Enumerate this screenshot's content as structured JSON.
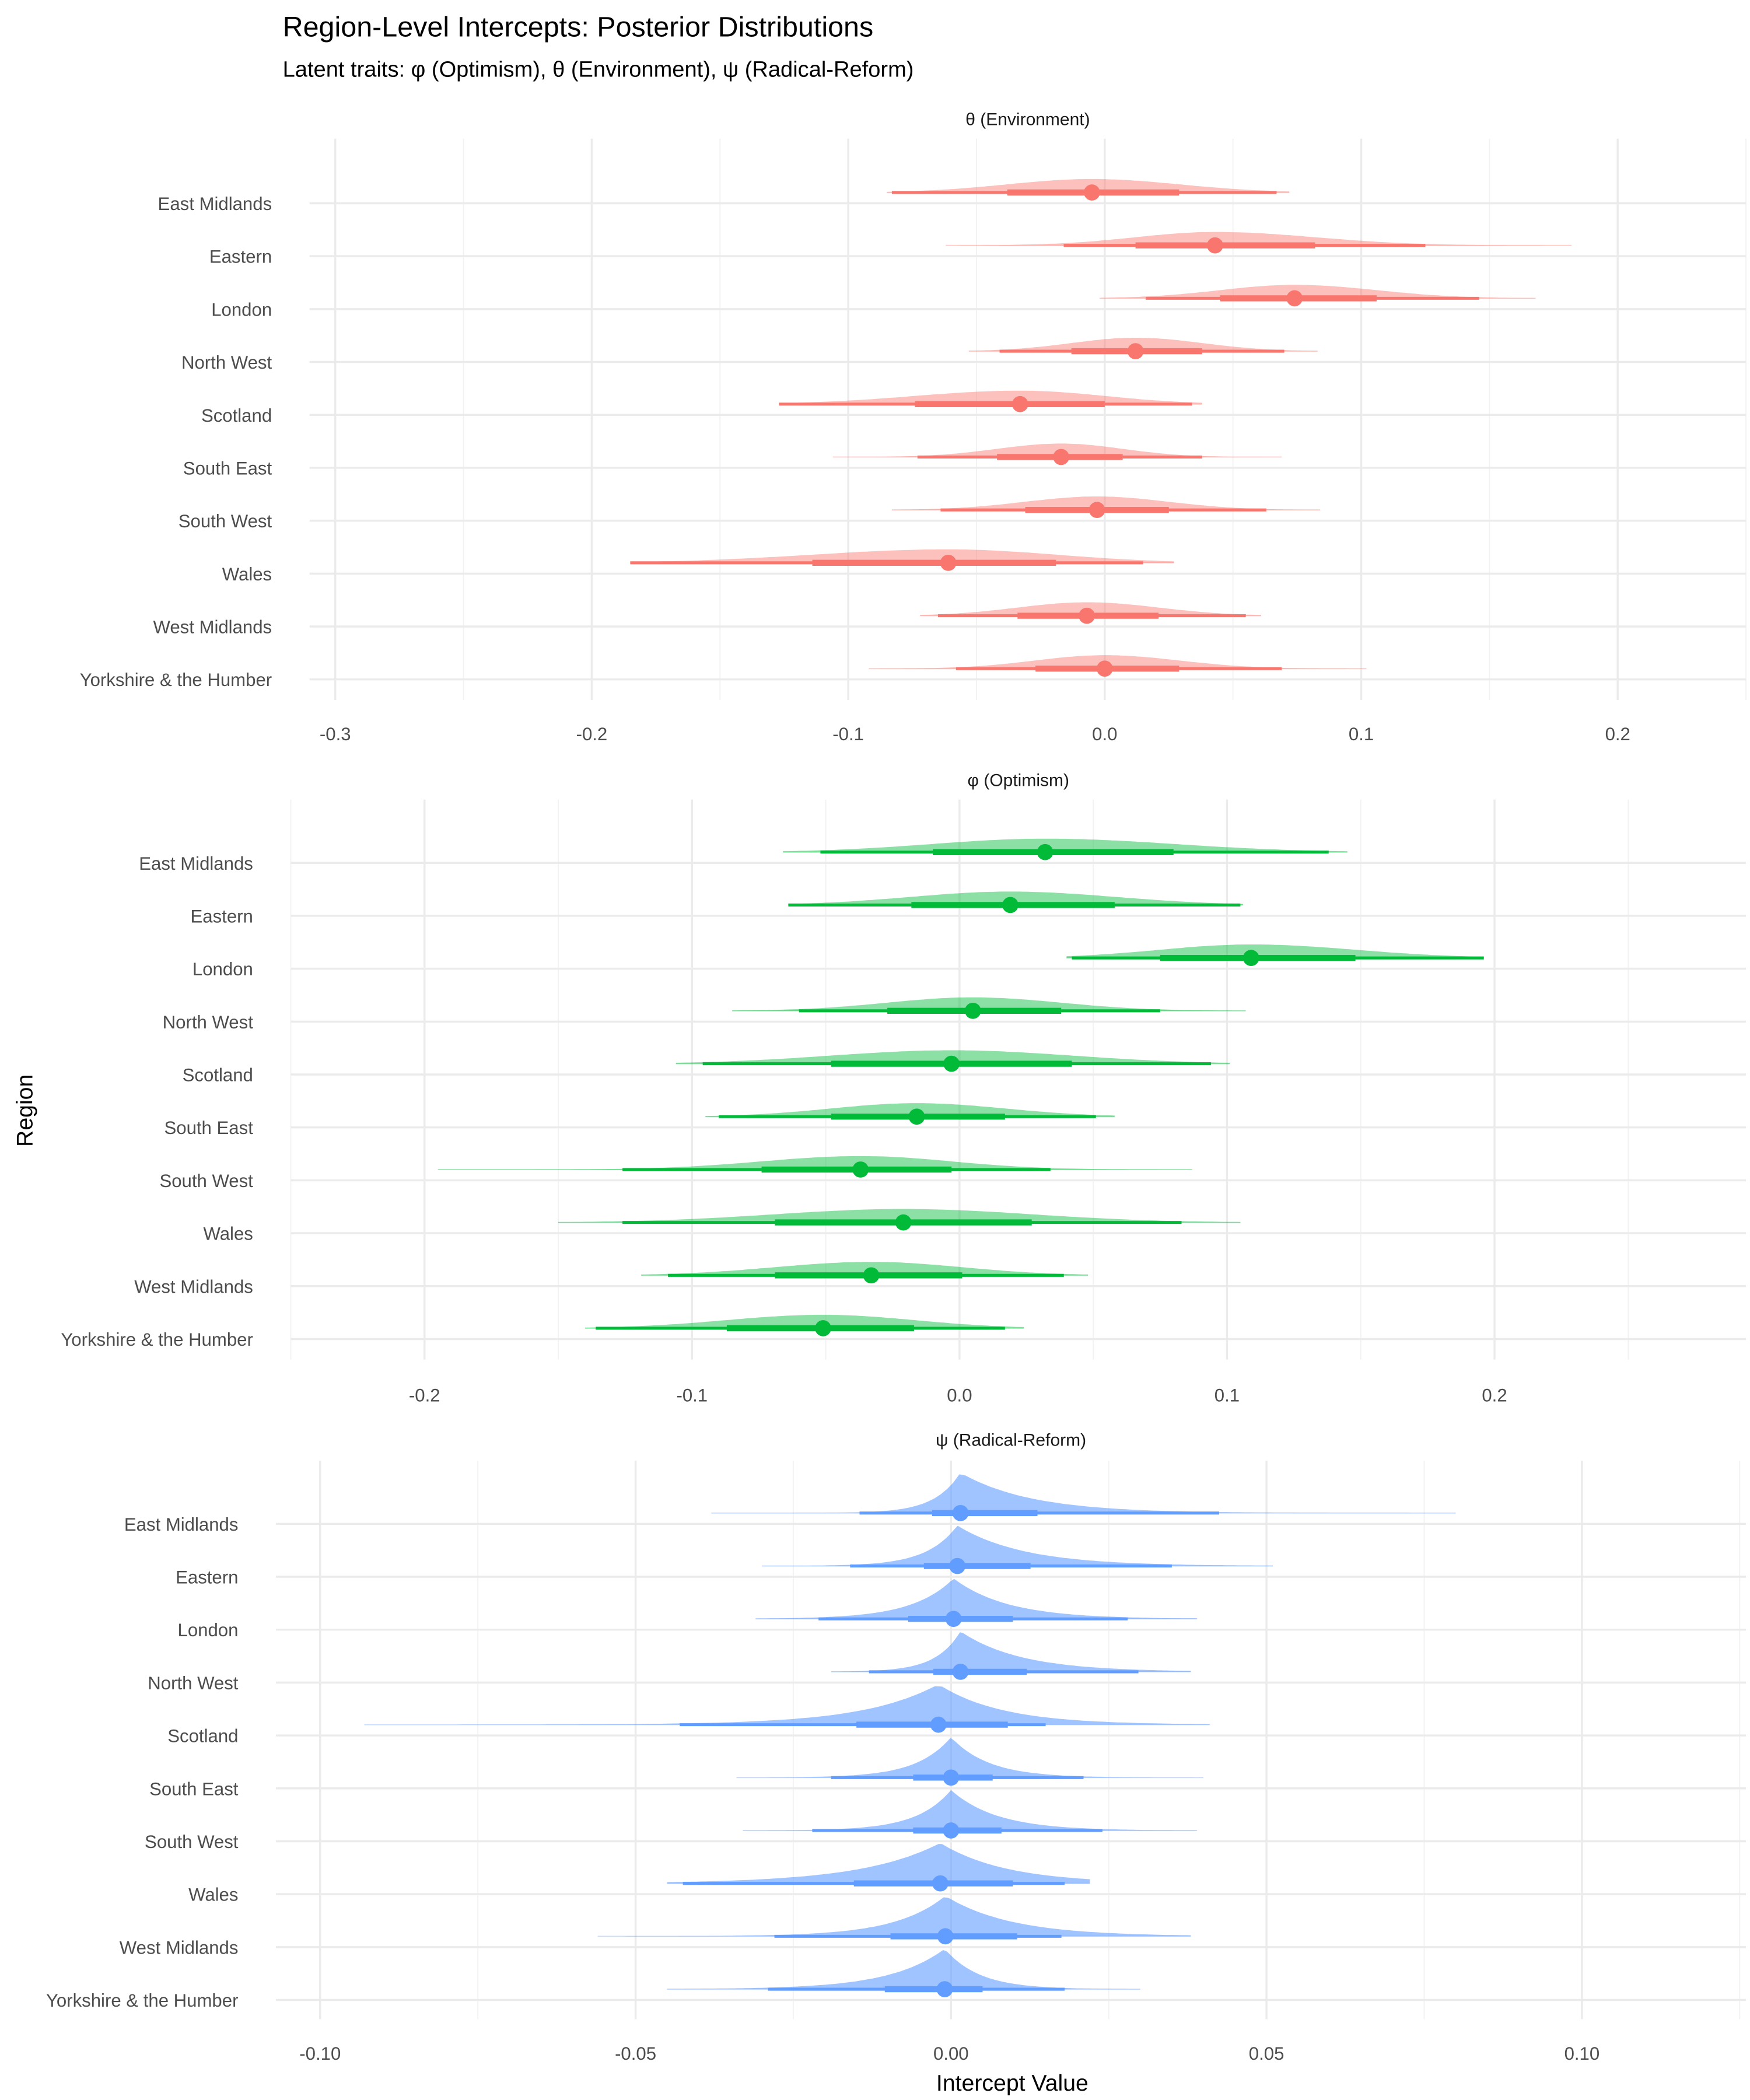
{
  "title": "Region-Level Intercepts: Posterior Distributions",
  "subtitle": "Latent traits: φ (Optimism), θ (Environment), ψ (Radical-Reform)",
  "chart_data": {
    "type": "interval",
    "xlabel": "Intercept Value",
    "ylabel": "Region",
    "categories": [
      "East Midlands",
      "Eastern",
      "London",
      "North West",
      "Scotland",
      "South East",
      "South West",
      "Wales",
      "West Midlands",
      "Yorkshire & the Humber"
    ],
    "panels": [
      {
        "title": "θ (Environment)",
        "color": "#F8766D",
        "xlim": [
          -0.31,
          0.25
        ],
        "ticks": [
          -0.3,
          -0.2,
          -0.1,
          0.0,
          0.1,
          0.2
        ],
        "tick_labels": [
          "-0.3",
          "-0.2",
          "-0.1",
          "0.0",
          "0.1",
          "0.2"
        ],
        "median": [
          -0.005,
          0.043,
          0.074,
          0.012,
          -0.033,
          -0.017,
          -0.003,
          -0.061,
          -0.007,
          0.0
        ],
        "interval_66": [
          [
            -0.038,
            0.029
          ],
          [
            0.012,
            0.082
          ],
          [
            0.045,
            0.106
          ],
          [
            -0.013,
            0.038
          ],
          [
            -0.074,
            0.0
          ],
          [
            -0.042,
            0.007
          ],
          [
            -0.031,
            0.025
          ],
          [
            -0.114,
            -0.019
          ],
          [
            -0.034,
            0.021
          ],
          [
            -0.027,
            0.029
          ]
        ],
        "interval_95": [
          [
            -0.083,
            0.067
          ],
          [
            -0.016,
            0.125
          ],
          [
            0.016,
            0.146
          ],
          [
            -0.041,
            0.07
          ],
          [
            -0.127,
            0.034
          ],
          [
            -0.073,
            0.038
          ],
          [
            -0.064,
            0.063
          ],
          [
            -0.185,
            0.015
          ],
          [
            -0.065,
            0.055
          ],
          [
            -0.058,
            0.069
          ]
        ],
        "range": [
          [
            -0.085,
            0.072
          ],
          [
            -0.062,
            0.182
          ],
          [
            -0.002,
            0.168
          ],
          [
            -0.053,
            0.083
          ],
          [
            -0.127,
            0.038
          ],
          [
            -0.106,
            0.069
          ],
          [
            -0.083,
            0.084
          ],
          [
            -0.185,
            0.027
          ],
          [
            -0.072,
            0.061
          ],
          [
            -0.092,
            0.102
          ]
        ]
      },
      {
        "title": "φ (Optimism)",
        "color": "#00BA38",
        "xlim": [
          -0.25,
          0.294
        ],
        "ticks": [
          -0.2,
          -0.1,
          0.0,
          0.1,
          0.2
        ],
        "tick_labels": [
          "-0.2",
          "-0.1",
          "0.0",
          "0.1",
          "0.2"
        ],
        "median": [
          0.032,
          0.019,
          0.109,
          0.005,
          -0.003,
          -0.016,
          -0.037,
          -0.021,
          -0.033,
          -0.051
        ],
        "interval_66": [
          [
            -0.01,
            0.08
          ],
          [
            -0.018,
            0.058
          ],
          [
            0.075,
            0.148
          ],
          [
            -0.027,
            0.038
          ],
          [
            -0.048,
            0.042
          ],
          [
            -0.048,
            0.017
          ],
          [
            -0.074,
            -0.003
          ],
          [
            -0.069,
            0.027
          ],
          [
            -0.069,
            0.001
          ],
          [
            -0.087,
            -0.017
          ]
        ],
        "interval_95": [
          [
            -0.052,
            0.138
          ],
          [
            -0.064,
            0.105
          ],
          [
            0.042,
            0.196
          ],
          [
            -0.06,
            0.075
          ],
          [
            -0.096,
            0.094
          ],
          [
            -0.09,
            0.051
          ],
          [
            -0.126,
            0.034
          ],
          [
            -0.126,
            0.083
          ],
          [
            -0.109,
            0.039
          ],
          [
            -0.136,
            0.017
          ]
        ],
        "range": [
          [
            -0.066,
            0.145
          ],
          [
            -0.064,
            0.106
          ],
          [
            0.04,
            0.196
          ],
          [
            -0.085,
            0.107
          ],
          [
            -0.106,
            0.101
          ],
          [
            -0.095,
            0.058
          ],
          [
            -0.195,
            0.087
          ],
          [
            -0.15,
            0.105
          ],
          [
            -0.119,
            0.048
          ],
          [
            -0.14,
            0.024
          ]
        ]
      },
      {
        "title": "ψ (Radical-Reform)",
        "color": "#619CFF",
        "xlim": [
          -0.107,
          0.126
        ],
        "ticks": [
          -0.1,
          -0.05,
          0.0,
          0.05,
          0.1
        ],
        "tick_labels": [
          "-0.10",
          "-0.05",
          "0.00",
          "0.05",
          "0.10"
        ],
        "median": [
          0.0015,
          0.001,
          0.0004,
          0.0015,
          -0.002,
          0.0,
          0.0,
          -0.0017,
          -0.0009,
          -0.001
        ],
        "interval_66": [
          [
            -0.003,
            0.0137
          ],
          [
            -0.0043,
            0.0126
          ],
          [
            -0.0068,
            0.0098
          ],
          [
            -0.0028,
            0.012
          ],
          [
            -0.015,
            0.009
          ],
          [
            -0.006,
            0.0066
          ],
          [
            -0.006,
            0.008
          ],
          [
            -0.0154,
            0.0098
          ],
          [
            -0.0096,
            0.0105
          ],
          [
            -0.0105,
            0.005
          ]
        ],
        "interval_95": [
          [
            -0.0145,
            0.0425
          ],
          [
            -0.016,
            0.035
          ],
          [
            -0.021,
            0.028
          ],
          [
            -0.013,
            0.0297
          ],
          [
            -0.043,
            0.015
          ],
          [
            -0.019,
            0.021
          ],
          [
            -0.022,
            0.024
          ],
          [
            -0.0425,
            0.018
          ],
          [
            -0.028,
            0.0175
          ],
          [
            -0.029,
            0.018
          ]
        ],
        "range": [
          [
            -0.038,
            0.08
          ],
          [
            -0.03,
            0.051
          ],
          [
            -0.031,
            0.039
          ],
          [
            -0.019,
            0.038
          ],
          [
            -0.093,
            0.041
          ],
          [
            -0.034,
            0.04
          ],
          [
            -0.033,
            0.039
          ],
          [
            -0.045,
            0.022
          ],
          [
            -0.056,
            0.038
          ],
          [
            -0.045,
            0.03
          ]
        ]
      }
    ]
  }
}
